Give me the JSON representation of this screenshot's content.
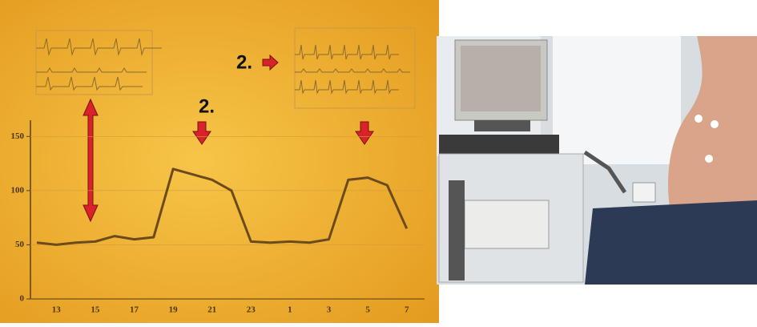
{
  "chart_data": {
    "type": "line",
    "categories": [
      null,
      "13",
      null,
      "15",
      null,
      "17",
      null,
      "19",
      null,
      "21",
      null,
      "23",
      null,
      "1",
      null,
      "3",
      null,
      "5",
      null,
      "7"
    ],
    "values": [
      52,
      50,
      52,
      53,
      58,
      55,
      57,
      120,
      115,
      110,
      100,
      53,
      52,
      53,
      52,
      55,
      110,
      112,
      105,
      65
    ],
    "color": "#6b4a1c",
    "ylim": [
      0,
      165
    ],
    "yticks": [
      0,
      50,
      100,
      150
    ],
    "grid": true,
    "annotations": [
      "2.",
      "2."
    ]
  }
}
